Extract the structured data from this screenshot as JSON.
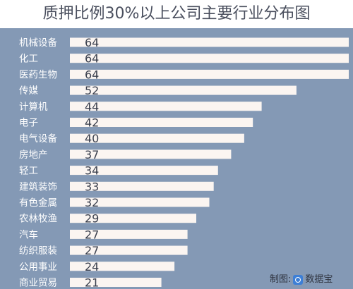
{
  "chart_data": {
    "type": "bar",
    "orientation": "horizontal",
    "title": "质押比例30%以上公司主要行业分布图",
    "categories": [
      "机械设备",
      "化工",
      "医药生物",
      "传媒",
      "计算机",
      "电子",
      "电气设备",
      "房地产",
      "轻工",
      "建筑装饰",
      "有色金属",
      "农林牧渔",
      "汽车",
      "纺织服装",
      "公用事业",
      "商业贸易"
    ],
    "values": [
      64,
      64,
      64,
      52,
      44,
      42,
      40,
      37,
      34,
      33,
      32,
      29,
      27,
      27,
      24,
      21
    ],
    "xlim": [
      0,
      64
    ],
    "grid": false,
    "legend": "none"
  },
  "credit": {
    "label": "制图:",
    "brand": "数据宝"
  },
  "colors": {
    "plot_background": "#8499b5",
    "bar_fill": "#fbf5f1",
    "title_text": "#4a4f5e",
    "value_text": "#3a3f4d"
  }
}
